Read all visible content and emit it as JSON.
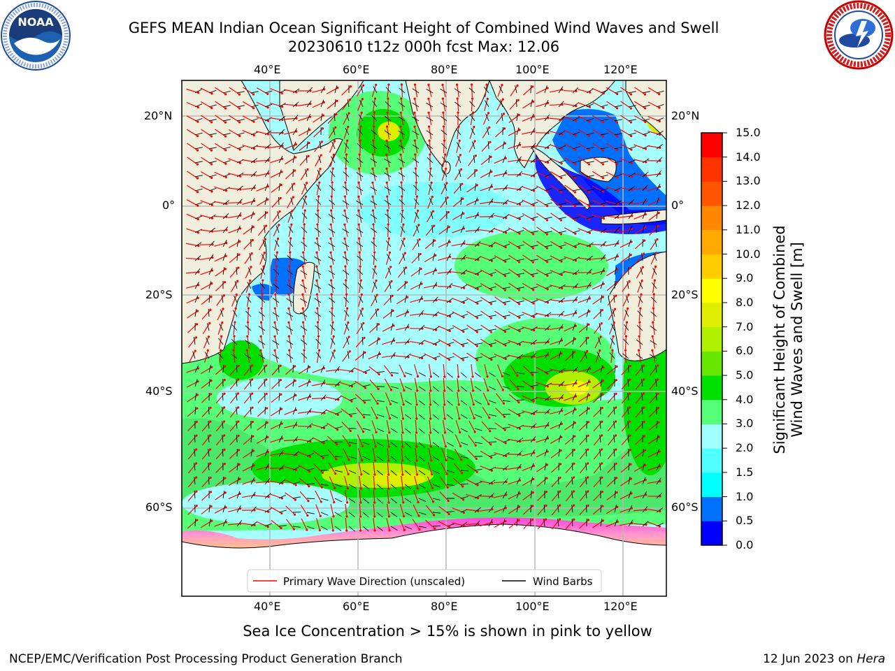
{
  "title": {
    "line1": "GEFS MEAN Indian Ocean Significant Height of Combined Wind Waves and Swell",
    "line2": "20230610 t12z 000h fcst   Max: 12.06"
  },
  "logos": {
    "left": {
      "name": "noaa-logo",
      "text": "NOAA",
      "ring_text": "NATIONAL OCEANIC AND ATMOSPHERIC ADMINISTRATION · U.S. DEPARTMENT OF COMMERCE"
    },
    "right": {
      "name": "nws-logo",
      "ring_text": "NATIONAL WEATHER SERVICE"
    }
  },
  "map": {
    "lon_labels": [
      "40°E",
      "60°E",
      "80°E",
      "100°E",
      "120°E"
    ],
    "lat_labels_left": [
      "20°N",
      "0°",
      "20°S",
      "40°S",
      "60°S"
    ],
    "lat_labels_right": [
      "20°N",
      "0°",
      "20°S",
      "40°S",
      "60°S"
    ],
    "grid": true,
    "land_color": "#f0eedc",
    "ice_color": "#ffffff",
    "legend": {
      "placement": "bottom-center",
      "items": [
        {
          "label": "Primary Wave Direction (unscaled)",
          "color": "#ff0000"
        },
        {
          "label": "Wind Barbs",
          "color": "#000000"
        }
      ]
    }
  },
  "colorbar": {
    "label_line1": "Significant Height of Combined",
    "label_line2": "Wind Waves and Swell [m]",
    "ticks": [
      "0.0",
      "0.5",
      "1.0",
      "1.5",
      "2.0",
      "3.0",
      "4.0",
      "5.0",
      "6.0",
      "7.0",
      "8.0",
      "9.0",
      "10.0",
      "11.0",
      "12.0",
      "13.0",
      "14.0",
      "15.0"
    ],
    "colors": [
      "#0000ff",
      "#0070ff",
      "#00ffff",
      "#50ffff",
      "#a0ffff",
      "#55ff77",
      "#00e000",
      "#66e600",
      "#b0f000",
      "#ddee00",
      "#ffff00",
      "#ffcc00",
      "#ffaa00",
      "#ff8800",
      "#ff5500",
      "#ff3300",
      "#ff0000"
    ]
  },
  "footer": {
    "note": "Sea Ice Concentration > 15% is shown in pink to yellow",
    "credit": "NCEP/EMC/Verification Post Processing Product Generation Branch",
    "date": "12 Jun 2023 on",
    "machine": "Hera"
  }
}
